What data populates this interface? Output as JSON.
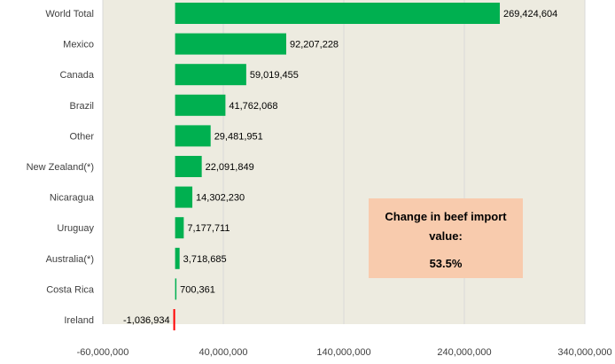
{
  "chart_data": {
    "type": "bar",
    "orientation": "horizontal",
    "categories": [
      "World Total",
      "Mexico",
      "Canada",
      "Brazil",
      "Other",
      "New Zealand(*)",
      "Nicaragua",
      "Uruguay",
      "Australia(*)",
      "Costa Rica",
      "Ireland"
    ],
    "values": [
      269424604,
      92207228,
      59019455,
      41762068,
      29481951,
      22091849,
      14302230,
      7177711,
      3718685,
      700361,
      -1036934
    ],
    "value_labels": [
      "269,424,604",
      "92,207,228",
      "59,019,455",
      "41,762,068",
      "29,481,951",
      "22,091,849",
      "14,302,230",
      "7,177,711",
      "3,718,685",
      "700,361",
      "-1,036,934"
    ],
    "x_ticks": [
      -60000000,
      40000000,
      140000000,
      240000000,
      340000000
    ],
    "x_tick_labels": [
      "-60,000,000",
      "40,000,000",
      "140,000,000",
      "240,000,000",
      "340,000,000"
    ],
    "xlim": [
      -60000000,
      340000000
    ],
    "grid": "vertical",
    "colors": {
      "positive": "#00b050",
      "negative": "#ff0000",
      "plot_background": "#edebe0",
      "gridline": "#d9d9d9"
    }
  },
  "callout": {
    "title": "Change in beef import value:",
    "value": "53.5%",
    "background": "#f8cbad"
  }
}
